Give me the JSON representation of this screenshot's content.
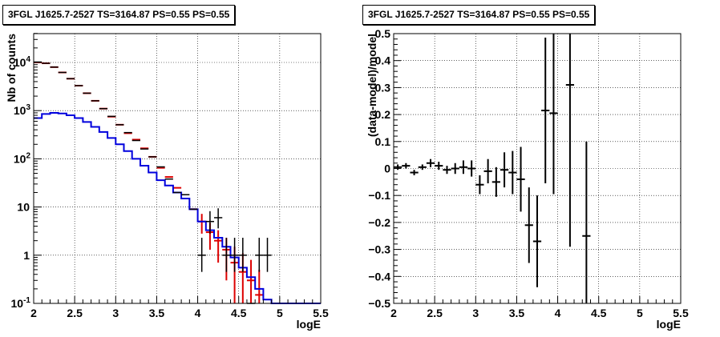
{
  "colors": {
    "data": "#000000",
    "model": "#dd0000",
    "source": "#0000dd",
    "grid": "#000000"
  },
  "chart_data": [
    {
      "type": "line",
      "title": "3FGL J1625.7-2527 TS=3164.87 PS=0.55 PS=0.55",
      "xlabel": "logE",
      "ylabel": "Nb of counts",
      "xlim": [
        2,
        5.5
      ],
      "ylim": [
        0.1,
        60000
      ],
      "yscale": "log",
      "grid": true,
      "xticks": [
        "2",
        "2.5",
        "3",
        "3.5",
        "4",
        "4.5",
        "5",
        "5.5"
      ],
      "yticks": [
        "10^-1",
        "1",
        "10",
        "10^2",
        "10^3",
        "10^4"
      ],
      "bin_width": 0.1,
      "series": [
        {
          "role": "data",
          "style": "points",
          "x": [
            2.05,
            2.15,
            2.25,
            2.35,
            2.45,
            2.55,
            2.65,
            2.75,
            2.85,
            2.95,
            3.05,
            3.15,
            3.25,
            3.35,
            3.45,
            3.55,
            3.65,
            3.75,
            3.85,
            3.95,
            4.05,
            4.15,
            4.25,
            4.35,
            4.45,
            4.55,
            4.65,
            4.75,
            4.85
          ],
          "values": [
            10200,
            9600,
            8000,
            6200,
            4600,
            3300,
            2300,
            1600,
            1100,
            760,
            510,
            350,
            240,
            160,
            110,
            68,
            38,
            20,
            18,
            9,
            1,
            5,
            6,
            1,
            1,
            1,
            0.1,
            1,
            1
          ],
          "err_low": [
            0,
            0,
            0,
            0,
            0,
            0,
            0,
            0,
            0,
            0,
            0,
            0,
            0,
            0,
            0,
            0,
            0,
            0,
            0,
            0,
            0.55,
            2.2,
            2.4,
            0.55,
            0.55,
            0.55,
            0,
            0.55,
            0.55
          ],
          "err_high": [
            0,
            0,
            0,
            0,
            0,
            0,
            0,
            0,
            0,
            0,
            0,
            0,
            0,
            0,
            0,
            0,
            0,
            0,
            0,
            0,
            1.3,
            3.2,
            3.4,
            1.3,
            1.3,
            1.3,
            0,
            1.3,
            1.3
          ]
        },
        {
          "role": "model",
          "style": "histogram",
          "x": [
            2.05,
            2.15,
            2.25,
            2.35,
            2.45,
            2.55,
            2.65,
            2.75,
            2.85,
            2.95,
            3.05,
            3.15,
            3.25,
            3.35,
            3.45,
            3.55,
            3.65,
            3.75,
            3.85,
            3.95,
            4.05,
            4.15,
            4.25,
            4.35,
            4.45,
            4.55,
            4.65,
            4.75
          ],
          "values": [
            10000,
            9600,
            8000,
            6200,
            4600,
            3300,
            2300,
            1600,
            1100,
            750,
            510,
            340,
            250,
            165,
            110,
            65,
            42,
            25,
            15,
            9,
            5,
            3,
            2,
            1.3,
            0.7,
            0.45,
            0.3,
            0.15
          ],
          "err": [
            0,
            0,
            0,
            0,
            0,
            0,
            0,
            0,
            0,
            0,
            0,
            0,
            0,
            0,
            0,
            0,
            0,
            0,
            0,
            0,
            2.2,
            1.7,
            1.3,
            1,
            0.8,
            0.65,
            0.5,
            0.35
          ]
        },
        {
          "role": "source",
          "style": "histogram",
          "x": [
            2.05,
            2.15,
            2.25,
            2.35,
            2.45,
            2.55,
            2.65,
            2.75,
            2.85,
            2.95,
            3.05,
            3.15,
            3.25,
            3.35,
            3.45,
            3.55,
            3.65,
            3.75,
            3.85,
            3.95,
            4.05,
            4.15,
            4.25,
            4.35,
            4.45,
            4.55,
            4.65,
            4.75,
            4.85,
            4.95,
            5.05,
            5.15,
            5.25,
            5.35,
            5.45
          ],
          "values": [
            700,
            850,
            900,
            870,
            800,
            700,
            580,
            460,
            360,
            270,
            200,
            145,
            100,
            72,
            52,
            36,
            28,
            20,
            15,
            9,
            5,
            3.3,
            2.3,
            1.5,
            0.9,
            0.55,
            0.35,
            0.2,
            0.12,
            0.1,
            0.1,
            0.1,
            0.1,
            0.1,
            0.1
          ]
        }
      ]
    },
    {
      "type": "scatter",
      "title": "3FGL J1625.7-2527 TS=3164.87 PS=0.55 PS=0.55",
      "xlabel": "logE",
      "ylabel": "(data-model)/model",
      "xlim": [
        2,
        5.5
      ],
      "ylim": [
        -0.5,
        0.5
      ],
      "grid": true,
      "xticks": [
        "2",
        "2.5",
        "3",
        "3.5",
        "4",
        "4.5",
        "5",
        "5.5"
      ],
      "yticks": [
        "−0.5",
        "−0.4",
        "−0.3",
        "−0.2",
        "−0.1",
        "0",
        "0.1",
        "0.2",
        "0.3",
        "0.4",
        "0.5"
      ],
      "bin_width": 0.1,
      "series": [
        {
          "role": "residuals",
          "x": [
            2.05,
            2.15,
            2.25,
            2.35,
            2.45,
            2.55,
            2.65,
            2.75,
            2.85,
            2.95,
            3.05,
            3.15,
            3.25,
            3.35,
            3.45,
            3.55,
            3.65,
            3.75,
            3.85,
            3.95,
            4.15,
            4.35
          ],
          "values": [
            0.005,
            0.01,
            -0.015,
            0.005,
            0.02,
            0.01,
            -0.005,
            0.0,
            0.005,
            0.0,
            -0.06,
            -0.01,
            -0.05,
            -0.005,
            -0.015,
            -0.04,
            -0.21,
            -0.27,
            0.215,
            0.205,
            0.31,
            -0.25
          ],
          "err": [
            0.01,
            0.01,
            0.01,
            0.01,
            0.015,
            0.015,
            0.015,
            0.02,
            0.025,
            0.03,
            0.035,
            0.045,
            0.055,
            0.065,
            0.08,
            0.12,
            0.14,
            0.17,
            0.27,
            0.3,
            0.6,
            0.35
          ]
        }
      ]
    }
  ]
}
